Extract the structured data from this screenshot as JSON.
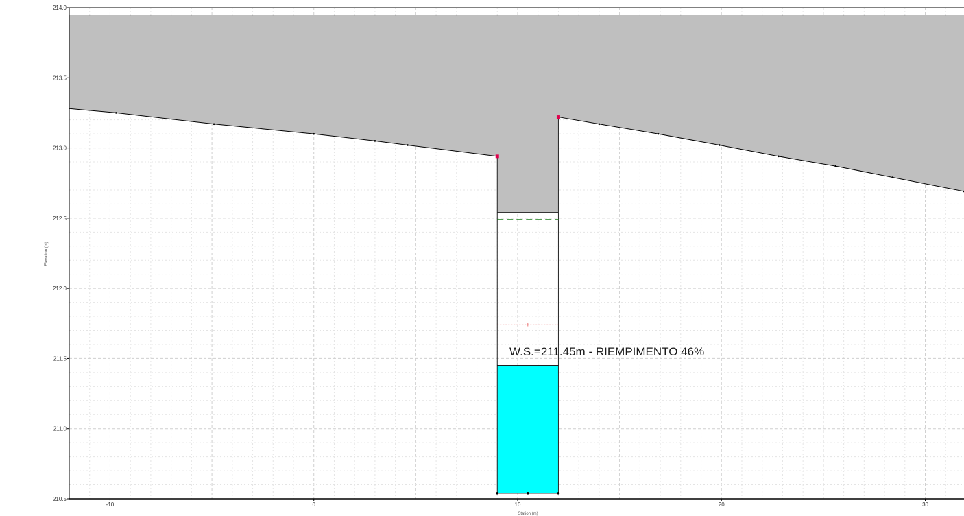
{
  "chart_data": {
    "type": "area",
    "title": "",
    "xlabel": "Station (m)",
    "ylabel": "Elevation (m)",
    "xlim": [
      -12.0,
      31.9
    ],
    "ylim": [
      210.5,
      214.0
    ],
    "x_ticks": [
      -10,
      0,
      10,
      20,
      30
    ],
    "x_tick_labels": [
      "-10",
      "0",
      "10",
      "20",
      "30"
    ],
    "y_ticks": [
      210.5,
      211.0,
      211.5,
      212.0,
      212.5,
      213.0,
      213.5,
      214.0
    ],
    "y_tick_labels": [
      "210.5",
      "211.0",
      "211.5",
      "212.0",
      "212.5",
      "213.0",
      "213.5",
      "214.0"
    ],
    "grid": true,
    "legend": "none",
    "ground_left": [
      {
        "x": -12.0,
        "y": 213.28
      },
      {
        "x": -9.7,
        "y": 213.25
      },
      {
        "x": -4.9,
        "y": 213.17
      },
      {
        "x": 0.0,
        "y": 213.1
      },
      {
        "x": 3.0,
        "y": 213.05
      },
      {
        "x": 4.6,
        "y": 213.02
      },
      {
        "x": 9.0,
        "y": 212.94
      }
    ],
    "ground_right": [
      {
        "x": 12.0,
        "y": 213.22
      },
      {
        "x": 14.0,
        "y": 213.17
      },
      {
        "x": 16.9,
        "y": 213.1
      },
      {
        "x": 19.9,
        "y": 213.02
      },
      {
        "x": 22.8,
        "y": 212.94
      },
      {
        "x": 25.6,
        "y": 212.87
      },
      {
        "x": 28.4,
        "y": 212.79
      },
      {
        "x": 31.9,
        "y": 212.69
      }
    ],
    "lid_elevation": 213.94,
    "culvert": {
      "left_x": 9.0,
      "right_x": 12.0,
      "invert": 210.54,
      "crown": 212.54
    },
    "bank_points": [
      {
        "x": 9.0,
        "y": 212.94
      },
      {
        "x": 12.0,
        "y": 213.22
      }
    ],
    "invert_points": [
      {
        "x": 9.0,
        "y": 210.54
      },
      {
        "x": 10.5,
        "y": 210.54
      },
      {
        "x": 12.0,
        "y": 210.54
      }
    ],
    "energy_grade_line": {
      "elevation": 212.49,
      "x_start": 9.0,
      "x_end": 12.0
    },
    "critical_ws": {
      "elevation": 211.74,
      "x_start": 9.0,
      "x_end": 12.0,
      "marker_x": 10.5
    },
    "water_surface": {
      "elevation": 211.45
    },
    "annotation": "W.S.=211.45m - RIEMPIMENTO 46%",
    "colors": {
      "ground_fill": "#bfbfbf",
      "water_fill": "#00ffff",
      "ground_line": "#000000",
      "bank_marker": "#e0004c",
      "egl": "#1a7f1a",
      "critical": "#e03030",
      "grid": "#d6d6d6"
    }
  }
}
